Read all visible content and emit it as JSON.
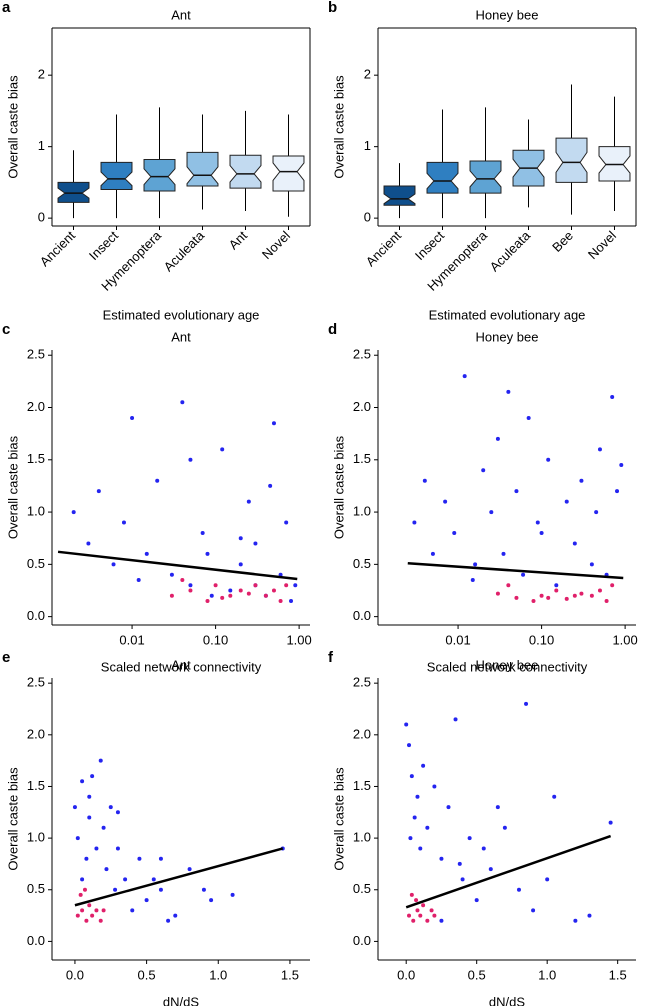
{
  "chart_data": [
    {
      "type": "box",
      "panel_label": "a",
      "title": "Ant",
      "ylabel": "Overall caste bias",
      "xlabel": "Estimated evolutionary age",
      "categories": [
        "Ancient",
        "Insect",
        "Hymenoptera",
        "Aculeata",
        "Ant",
        "Novel"
      ],
      "colors": [
        "#0f4f8c",
        "#2f7fc1",
        "#5ea3d3",
        "#90c0e4",
        "#c2daf0",
        "#e9f1fa"
      ],
      "boxes": [
        {
          "whislo": 0,
          "q1": 0.22,
          "med": 0.35,
          "q3": 0.5,
          "whishi": 0.95
        },
        {
          "whislo": 0,
          "q1": 0.4,
          "med": 0.55,
          "q3": 0.78,
          "whishi": 1.45
        },
        {
          "whislo": 0,
          "q1": 0.38,
          "med": 0.58,
          "q3": 0.82,
          "whishi": 1.55
        },
        {
          "whislo": 0.12,
          "q1": 0.45,
          "med": 0.6,
          "q3": 0.92,
          "whishi": 1.45
        },
        {
          "whislo": 0.1,
          "q1": 0.42,
          "med": 0.62,
          "q3": 0.88,
          "whishi": 1.5
        },
        {
          "whislo": 0.02,
          "q1": 0.38,
          "med": 0.65,
          "q3": 0.87,
          "whishi": 1.45
        }
      ],
      "ylim": [
        -0.11,
        2.66
      ],
      "yticks": [
        0,
        1,
        2
      ]
    },
    {
      "type": "box",
      "panel_label": "b",
      "title": "Honey bee",
      "ylabel": "Overall caste bias",
      "xlabel": "Estimated evolutionary age",
      "categories": [
        "Ancient",
        "Insect",
        "Hymenoptera",
        "Aculeata",
        "Bee",
        "Novel"
      ],
      "colors": [
        "#0f4f8c",
        "#2f7fc1",
        "#5ea3d3",
        "#90c0e4",
        "#c2daf0",
        "#e9f1fa"
      ],
      "boxes": [
        {
          "whislo": 0,
          "q1": 0.18,
          "med": 0.27,
          "q3": 0.45,
          "whishi": 0.77
        },
        {
          "whislo": 0,
          "q1": 0.35,
          "med": 0.52,
          "q3": 0.78,
          "whishi": 1.52
        },
        {
          "whislo": 0,
          "q1": 0.35,
          "med": 0.55,
          "q3": 0.8,
          "whishi": 1.55
        },
        {
          "whislo": 0.15,
          "q1": 0.45,
          "med": 0.7,
          "q3": 0.95,
          "whishi": 1.38
        },
        {
          "whislo": 0.05,
          "q1": 0.5,
          "med": 0.78,
          "q3": 1.12,
          "whishi": 1.87
        },
        {
          "whislo": 0.1,
          "q1": 0.52,
          "med": 0.75,
          "q3": 1.0,
          "whishi": 1.7
        }
      ],
      "ylim": [
        -0.11,
        2.66
      ],
      "yticks": [
        0,
        1,
        2
      ]
    },
    {
      "type": "scatter",
      "panel_label": "c",
      "title": "Ant",
      "ylabel": "Overall caste bias",
      "xlabel": "Scaled network connectivity",
      "xscale": "log",
      "xlim": [
        0.0011,
        1.35
      ],
      "xticks": [
        {
          "value": 0.01,
          "label": "0.01"
        },
        {
          "value": 0.1,
          "label": "0.10"
        },
        {
          "value": 1,
          "label": "1.00"
        }
      ],
      "ylim": [
        -0.08,
        2.55
      ],
      "yticks": [
        {
          "value": 0,
          "label": "0.0"
        },
        0.5,
        {
          "value": 1,
          "label": "1.0"
        },
        1.5,
        {
          "value": 2,
          "label": "2.0"
        },
        2.5
      ],
      "series": [
        {
          "color": "#2424f0",
          "x": [
            0.002,
            0.003,
            0.004,
            0.006,
            0.008,
            0.01,
            0.015,
            0.02,
            0.03,
            0.04,
            0.05,
            0.07,
            0.09,
            0.12,
            0.15,
            0.2,
            0.25,
            0.3,
            0.4,
            0.5,
            0.6,
            0.7,
            0.8,
            0.9,
            0.012,
            0.05,
            0.2,
            0.45,
            0.08,
            0.3
          ],
          "y": [
            1.0,
            0.7,
            1.2,
            0.5,
            0.9,
            1.9,
            0.6,
            1.3,
            0.4,
            2.05,
            0.3,
            0.8,
            0.2,
            1.6,
            0.25,
            0.5,
            1.1,
            0.3,
            0.2,
            1.85,
            0.4,
            0.9,
            0.15,
            0.3,
            0.35,
            1.5,
            0.75,
            1.25,
            0.6,
            0.7
          ]
        },
        {
          "color": "#e0206a",
          "x": [
            0.03,
            0.05,
            0.08,
            0.1,
            0.15,
            0.2,
            0.3,
            0.4,
            0.5,
            0.6,
            0.7,
            0.04,
            0.12,
            0.25
          ],
          "y": [
            0.2,
            0.25,
            0.15,
            0.3,
            0.2,
            0.25,
            0.3,
            0.2,
            0.25,
            0.15,
            0.3,
            0.35,
            0.18,
            0.22
          ]
        }
      ],
      "trend": {
        "color": "#000000",
        "x": [
          0.0013,
          0.95
        ],
        "y": [
          0.62,
          0.36
        ]
      }
    },
    {
      "type": "scatter",
      "panel_label": "d",
      "title": "Honey bee",
      "ylabel": "Overall caste bias",
      "xlabel": "Scaled network connectivity",
      "xscale": "log",
      "xlim": [
        0.0011,
        1.35
      ],
      "xticks": [
        {
          "value": 0.01,
          "label": "0.01"
        },
        {
          "value": 0.1,
          "label": "0.10"
        },
        {
          "value": 1,
          "label": "1.00"
        }
      ],
      "ylim": [
        -0.08,
        2.55
      ],
      "yticks": [
        {
          "value": 0,
          "label": "0.0"
        },
        0.5,
        {
          "value": 1,
          "label": "1.0"
        },
        1.5,
        {
          "value": 2,
          "label": "2.0"
        },
        2.5
      ],
      "series": [
        {
          "color": "#2424f0",
          "x": [
            0.003,
            0.004,
            0.005,
            0.007,
            0.009,
            0.012,
            0.016,
            0.02,
            0.025,
            0.03,
            0.04,
            0.05,
            0.06,
            0.07,
            0.09,
            0.12,
            0.15,
            0.2,
            0.25,
            0.3,
            0.4,
            0.5,
            0.6,
            0.7,
            0.8,
            0.9,
            0.035,
            0.1,
            0.45,
            0.015
          ],
          "y": [
            0.9,
            1.3,
            0.6,
            1.1,
            0.8,
            2.3,
            0.5,
            1.4,
            1.0,
            1.7,
            2.15,
            1.2,
            0.4,
            1.9,
            0.9,
            1.5,
            0.3,
            1.1,
            0.7,
            1.3,
            0.5,
            1.6,
            0.4,
            2.1,
            1.2,
            1.45,
            0.6,
            0.8,
            1.0,
            0.35
          ]
        },
        {
          "color": "#e0206a",
          "x": [
            0.03,
            0.05,
            0.08,
            0.1,
            0.15,
            0.2,
            0.3,
            0.4,
            0.5,
            0.6,
            0.7,
            0.04,
            0.12,
            0.25
          ],
          "y": [
            0.22,
            0.18,
            0.15,
            0.2,
            0.25,
            0.17,
            0.22,
            0.2,
            0.25,
            0.15,
            0.3,
            0.3,
            0.18,
            0.2
          ]
        }
      ],
      "trend": {
        "color": "#000000",
        "x": [
          0.0025,
          0.95
        ],
        "y": [
          0.51,
          0.37
        ]
      }
    },
    {
      "type": "scatter",
      "panel_label": "e",
      "title": "Ant",
      "ylabel": "Overall caste bias",
      "xlabel": "dN/dS",
      "xscale": "linear",
      "xlim": [
        -0.16,
        1.64
      ],
      "xticks": [
        {
          "value": 0,
          "label": "0.0"
        },
        0.5,
        {
          "value": 1,
          "label": "1.0"
        },
        1.5
      ],
      "ylim": [
        -0.18,
        2.55
      ],
      "yticks": [
        {
          "value": 0,
          "label": "0.0"
        },
        0.5,
        {
          "value": 1,
          "label": "1.0"
        },
        1.5,
        {
          "value": 2,
          "label": "2.0"
        },
        2.5
      ],
      "series": [
        {
          "color": "#2424f0",
          "x": [
            0.0,
            0.02,
            0.05,
            0.08,
            0.1,
            0.12,
            0.15,
            0.18,
            0.2,
            0.22,
            0.25,
            0.28,
            0.3,
            0.35,
            0.4,
            0.45,
            0.5,
            0.55,
            0.6,
            0.7,
            0.8,
            0.9,
            1.1,
            1.45,
            0.05,
            0.1,
            0.3,
            0.6,
            0.65,
            0.95
          ],
          "y": [
            1.3,
            1.0,
            1.55,
            0.8,
            1.2,
            1.6,
            0.9,
            1.75,
            1.1,
            0.7,
            1.3,
            0.5,
            0.9,
            0.6,
            0.3,
            0.8,
            0.4,
            0.6,
            0.5,
            0.25,
            0.7,
            0.5,
            0.45,
            0.9,
            0.6,
            1.4,
            1.25,
            0.8,
            0.2,
            0.4
          ]
        },
        {
          "color": "#e0206a",
          "x": [
            0.02,
            0.05,
            0.08,
            0.1,
            0.12,
            0.15,
            0.18,
            0.04,
            0.07,
            0.2
          ],
          "y": [
            0.25,
            0.3,
            0.2,
            0.35,
            0.25,
            0.3,
            0.2,
            0.45,
            0.5,
            0.3
          ]
        }
      ],
      "trend": {
        "color": "#000000",
        "x": [
          0,
          1.45
        ],
        "y": [
          0.35,
          0.9
        ]
      }
    },
    {
      "type": "scatter",
      "panel_label": "f",
      "title": "Honey bee",
      "ylabel": "Overall caste bias",
      "xlabel": "dN/dS",
      "xscale": "linear",
      "xlim": [
        -0.2,
        1.63
      ],
      "xticks": [
        {
          "value": 0,
          "label": "0.0"
        },
        0.5,
        {
          "value": 1,
          "label": "1.0"
        },
        1.5
      ],
      "ylim": [
        -0.18,
        2.55
      ],
      "yticks": [
        {
          "value": 0,
          "label": "0.0"
        },
        0.5,
        {
          "value": 1,
          "label": "1.0"
        },
        1.5,
        {
          "value": 2,
          "label": "2.0"
        },
        2.5
      ],
      "series": [
        {
          "color": "#2424f0",
          "x": [
            0.0,
            0.02,
            0.04,
            0.06,
            0.08,
            0.1,
            0.12,
            0.15,
            0.2,
            0.25,
            0.3,
            0.35,
            0.4,
            0.45,
            0.5,
            0.55,
            0.6,
            0.7,
            0.8,
            0.85,
            0.9,
            1.0,
            1.05,
            1.2,
            1.3,
            1.45,
            0.03,
            0.25,
            0.65,
            0.38
          ],
          "y": [
            2.1,
            1.9,
            1.6,
            1.2,
            1.4,
            0.9,
            1.7,
            1.1,
            1.5,
            0.8,
            1.3,
            2.15,
            0.6,
            1.0,
            0.4,
            0.9,
            0.7,
            1.1,
            0.5,
            2.3,
            0.3,
            0.6,
            1.4,
            0.2,
            0.25,
            1.15,
            1.0,
            0.2,
            1.3,
            0.75
          ]
        },
        {
          "color": "#e0206a",
          "x": [
            0.02,
            0.05,
            0.08,
            0.1,
            0.12,
            0.15,
            0.18,
            0.04,
            0.07,
            0.2
          ],
          "y": [
            0.25,
            0.2,
            0.3,
            0.25,
            0.35,
            0.2,
            0.3,
            0.45,
            0.4,
            0.25
          ]
        }
      ],
      "trend": {
        "color": "#000000",
        "x": [
          0,
          1.45
        ],
        "y": [
          0.33,
          1.02
        ]
      }
    }
  ]
}
